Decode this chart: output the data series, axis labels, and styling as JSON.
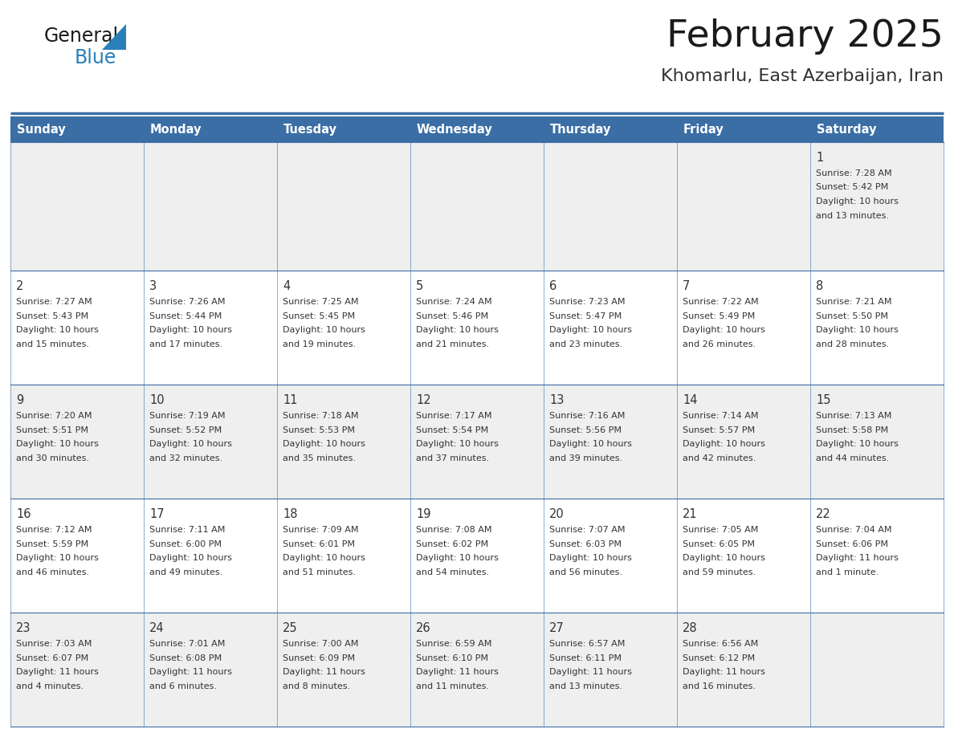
{
  "title": "February 2025",
  "subtitle": "Khomarlu, East Azerbaijan, Iran",
  "days_of_week": [
    "Sunday",
    "Monday",
    "Tuesday",
    "Wednesday",
    "Thursday",
    "Friday",
    "Saturday"
  ],
  "header_bg": "#3a6ea5",
  "header_text": "#ffffff",
  "row_bg_even": "#efefef",
  "row_bg_odd": "#ffffff",
  "border_color": "#3a6ea5",
  "text_color": "#333333",
  "day_number_color": "#333333",
  "title_color": "#1a1a1a",
  "subtitle_color": "#333333",
  "logo_general_color": "#1a1a1a",
  "logo_blue_color": "#2980b9",
  "calendar_data": [
    {
      "day": 1,
      "col": 6,
      "row": 0,
      "sunrise": "7:28 AM",
      "sunset": "5:42 PM",
      "daylight_line1": "Daylight: 10 hours",
      "daylight_line2": "and 13 minutes."
    },
    {
      "day": 2,
      "col": 0,
      "row": 1,
      "sunrise": "7:27 AM",
      "sunset": "5:43 PM",
      "daylight_line1": "Daylight: 10 hours",
      "daylight_line2": "and 15 minutes."
    },
    {
      "day": 3,
      "col": 1,
      "row": 1,
      "sunrise": "7:26 AM",
      "sunset": "5:44 PM",
      "daylight_line1": "Daylight: 10 hours",
      "daylight_line2": "and 17 minutes."
    },
    {
      "day": 4,
      "col": 2,
      "row": 1,
      "sunrise": "7:25 AM",
      "sunset": "5:45 PM",
      "daylight_line1": "Daylight: 10 hours",
      "daylight_line2": "and 19 minutes."
    },
    {
      "day": 5,
      "col": 3,
      "row": 1,
      "sunrise": "7:24 AM",
      "sunset": "5:46 PM",
      "daylight_line1": "Daylight: 10 hours",
      "daylight_line2": "and 21 minutes."
    },
    {
      "day": 6,
      "col": 4,
      "row": 1,
      "sunrise": "7:23 AM",
      "sunset": "5:47 PM",
      "daylight_line1": "Daylight: 10 hours",
      "daylight_line2": "and 23 minutes."
    },
    {
      "day": 7,
      "col": 5,
      "row": 1,
      "sunrise": "7:22 AM",
      "sunset": "5:49 PM",
      "daylight_line1": "Daylight: 10 hours",
      "daylight_line2": "and 26 minutes."
    },
    {
      "day": 8,
      "col": 6,
      "row": 1,
      "sunrise": "7:21 AM",
      "sunset": "5:50 PM",
      "daylight_line1": "Daylight: 10 hours",
      "daylight_line2": "and 28 minutes."
    },
    {
      "day": 9,
      "col": 0,
      "row": 2,
      "sunrise": "7:20 AM",
      "sunset": "5:51 PM",
      "daylight_line1": "Daylight: 10 hours",
      "daylight_line2": "and 30 minutes."
    },
    {
      "day": 10,
      "col": 1,
      "row": 2,
      "sunrise": "7:19 AM",
      "sunset": "5:52 PM",
      "daylight_line1": "Daylight: 10 hours",
      "daylight_line2": "and 32 minutes."
    },
    {
      "day": 11,
      "col": 2,
      "row": 2,
      "sunrise": "7:18 AM",
      "sunset": "5:53 PM",
      "daylight_line1": "Daylight: 10 hours",
      "daylight_line2": "and 35 minutes."
    },
    {
      "day": 12,
      "col": 3,
      "row": 2,
      "sunrise": "7:17 AM",
      "sunset": "5:54 PM",
      "daylight_line1": "Daylight: 10 hours",
      "daylight_line2": "and 37 minutes."
    },
    {
      "day": 13,
      "col": 4,
      "row": 2,
      "sunrise": "7:16 AM",
      "sunset": "5:56 PM",
      "daylight_line1": "Daylight: 10 hours",
      "daylight_line2": "and 39 minutes."
    },
    {
      "day": 14,
      "col": 5,
      "row": 2,
      "sunrise": "7:14 AM",
      "sunset": "5:57 PM",
      "daylight_line1": "Daylight: 10 hours",
      "daylight_line2": "and 42 minutes."
    },
    {
      "day": 15,
      "col": 6,
      "row": 2,
      "sunrise": "7:13 AM",
      "sunset": "5:58 PM",
      "daylight_line1": "Daylight: 10 hours",
      "daylight_line2": "and 44 minutes."
    },
    {
      "day": 16,
      "col": 0,
      "row": 3,
      "sunrise": "7:12 AM",
      "sunset": "5:59 PM",
      "daylight_line1": "Daylight: 10 hours",
      "daylight_line2": "and 46 minutes."
    },
    {
      "day": 17,
      "col": 1,
      "row": 3,
      "sunrise": "7:11 AM",
      "sunset": "6:00 PM",
      "daylight_line1": "Daylight: 10 hours",
      "daylight_line2": "and 49 minutes."
    },
    {
      "day": 18,
      "col": 2,
      "row": 3,
      "sunrise": "7:09 AM",
      "sunset": "6:01 PM",
      "daylight_line1": "Daylight: 10 hours",
      "daylight_line2": "and 51 minutes."
    },
    {
      "day": 19,
      "col": 3,
      "row": 3,
      "sunrise": "7:08 AM",
      "sunset": "6:02 PM",
      "daylight_line1": "Daylight: 10 hours",
      "daylight_line2": "and 54 minutes."
    },
    {
      "day": 20,
      "col": 4,
      "row": 3,
      "sunrise": "7:07 AM",
      "sunset": "6:03 PM",
      "daylight_line1": "Daylight: 10 hours",
      "daylight_line2": "and 56 minutes."
    },
    {
      "day": 21,
      "col": 5,
      "row": 3,
      "sunrise": "7:05 AM",
      "sunset": "6:05 PM",
      "daylight_line1": "Daylight: 10 hours",
      "daylight_line2": "and 59 minutes."
    },
    {
      "day": 22,
      "col": 6,
      "row": 3,
      "sunrise": "7:04 AM",
      "sunset": "6:06 PM",
      "daylight_line1": "Daylight: 11 hours",
      "daylight_line2": "and 1 minute."
    },
    {
      "day": 23,
      "col": 0,
      "row": 4,
      "sunrise": "7:03 AM",
      "sunset": "6:07 PM",
      "daylight_line1": "Daylight: 11 hours",
      "daylight_line2": "and 4 minutes."
    },
    {
      "day": 24,
      "col": 1,
      "row": 4,
      "sunrise": "7:01 AM",
      "sunset": "6:08 PM",
      "daylight_line1": "Daylight: 11 hours",
      "daylight_line2": "and 6 minutes."
    },
    {
      "day": 25,
      "col": 2,
      "row": 4,
      "sunrise": "7:00 AM",
      "sunset": "6:09 PM",
      "daylight_line1": "Daylight: 11 hours",
      "daylight_line2": "and 8 minutes."
    },
    {
      "day": 26,
      "col": 3,
      "row": 4,
      "sunrise": "6:59 AM",
      "sunset": "6:10 PM",
      "daylight_line1": "Daylight: 11 hours",
      "daylight_line2": "and 11 minutes."
    },
    {
      "day": 27,
      "col": 4,
      "row": 4,
      "sunrise": "6:57 AM",
      "sunset": "6:11 PM",
      "daylight_line1": "Daylight: 11 hours",
      "daylight_line2": "and 13 minutes."
    },
    {
      "day": 28,
      "col": 5,
      "row": 4,
      "sunrise": "6:56 AM",
      "sunset": "6:12 PM",
      "daylight_line1": "Daylight: 11 hours",
      "daylight_line2": "and 16 minutes."
    }
  ],
  "fig_width": 11.88,
  "fig_height": 9.18,
  "dpi": 100
}
